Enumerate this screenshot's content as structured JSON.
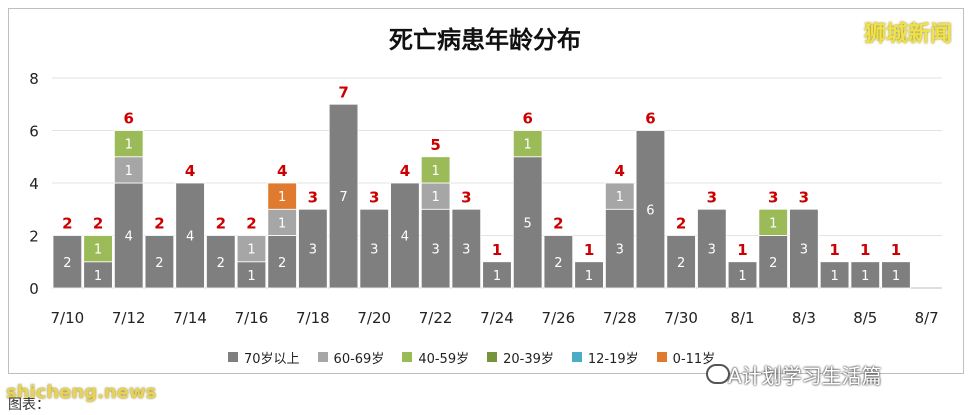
{
  "chart_data": {
    "type": "bar",
    "title": "死亡病患年龄分布",
    "xlabel": "",
    "ylabel": "",
    "ylim": [
      0,
      8
    ],
    "yticks": [
      0,
      2,
      4,
      6,
      8
    ],
    "grid": true,
    "legend_position": "bottom",
    "stacked": true,
    "categories": [
      "7/10",
      "7/11",
      "7/12",
      "7/13",
      "7/14",
      "7/15",
      "7/16",
      "7/17",
      "7/18",
      "7/19",
      "7/20",
      "7/21",
      "7/22",
      "7/23",
      "7/24",
      "7/25",
      "7/26",
      "7/27",
      "7/28",
      "7/29",
      "7/30",
      "7/31",
      "8/1",
      "8/2",
      "8/3",
      "8/4",
      "8/5",
      "8/6",
      "8/7"
    ],
    "x_tick_labels": [
      "7/10",
      "7/12",
      "7/14",
      "7/16",
      "7/18",
      "7/20",
      "7/22",
      "7/24",
      "7/26",
      "7/28",
      "7/30",
      "8/1",
      "8/3",
      "8/5",
      "8/7"
    ],
    "series": [
      {
        "name": "70岁以上",
        "color": "#7f7f7f",
        "values": [
          2,
          1,
          4,
          2,
          4,
          2,
          1,
          2,
          3,
          7,
          3,
          4,
          3,
          3,
          1,
          5,
          2,
          1,
          3,
          6,
          2,
          3,
          1,
          2,
          3,
          1,
          1,
          1,
          0
        ]
      },
      {
        "name": "60-69岁",
        "color": "#a6a6a6",
        "values": [
          0,
          0,
          1,
          0,
          0,
          0,
          1,
          1,
          0,
          0,
          0,
          0,
          1,
          0,
          0,
          0,
          0,
          0,
          1,
          0,
          0,
          0,
          0,
          0,
          0,
          0,
          0,
          0,
          0
        ]
      },
      {
        "name": "40-59岁",
        "color": "#9bbb59",
        "values": [
          0,
          1,
          1,
          0,
          0,
          0,
          0,
          0,
          0,
          0,
          0,
          0,
          1,
          0,
          0,
          1,
          0,
          0,
          0,
          0,
          0,
          0,
          0,
          1,
          0,
          0,
          0,
          0,
          0
        ]
      },
      {
        "name": "20-39岁",
        "color": "#77933c",
        "values": [
          0,
          0,
          0,
          0,
          0,
          0,
          0,
          0,
          0,
          0,
          0,
          0,
          0,
          0,
          0,
          0,
          0,
          0,
          0,
          0,
          0,
          0,
          0,
          0,
          0,
          0,
          0,
          0,
          0
        ]
      },
      {
        "name": "12-19岁",
        "color": "#4bacc6",
        "values": [
          0,
          0,
          0,
          0,
          0,
          0,
          0,
          0,
          0,
          0,
          0,
          0,
          0,
          0,
          0,
          0,
          0,
          0,
          0,
          0,
          0,
          0,
          0,
          0,
          0,
          0,
          0,
          0,
          0
        ]
      },
      {
        "name": "0-11岁",
        "color": "#e07a2f",
        "values": [
          0,
          0,
          0,
          0,
          0,
          0,
          0,
          1,
          0,
          0,
          0,
          0,
          0,
          0,
          0,
          0,
          0,
          0,
          0,
          0,
          0,
          0,
          0,
          0,
          0,
          0,
          0,
          0,
          0
        ]
      }
    ],
    "totals": [
      2,
      2,
      6,
      2,
      4,
      2,
      2,
      4,
      3,
      7,
      3,
      4,
      5,
      3,
      1,
      6,
      2,
      1,
      4,
      6,
      2,
      3,
      1,
      3,
      3,
      1,
      1,
      1,
      0
    ],
    "total_label_color": "#cc0000"
  },
  "brand": "狮城新闻",
  "watermark_left": "shicheng.news",
  "watermark_right": "A计划学习生活篇",
  "caption": "图表：　　　　　　"
}
